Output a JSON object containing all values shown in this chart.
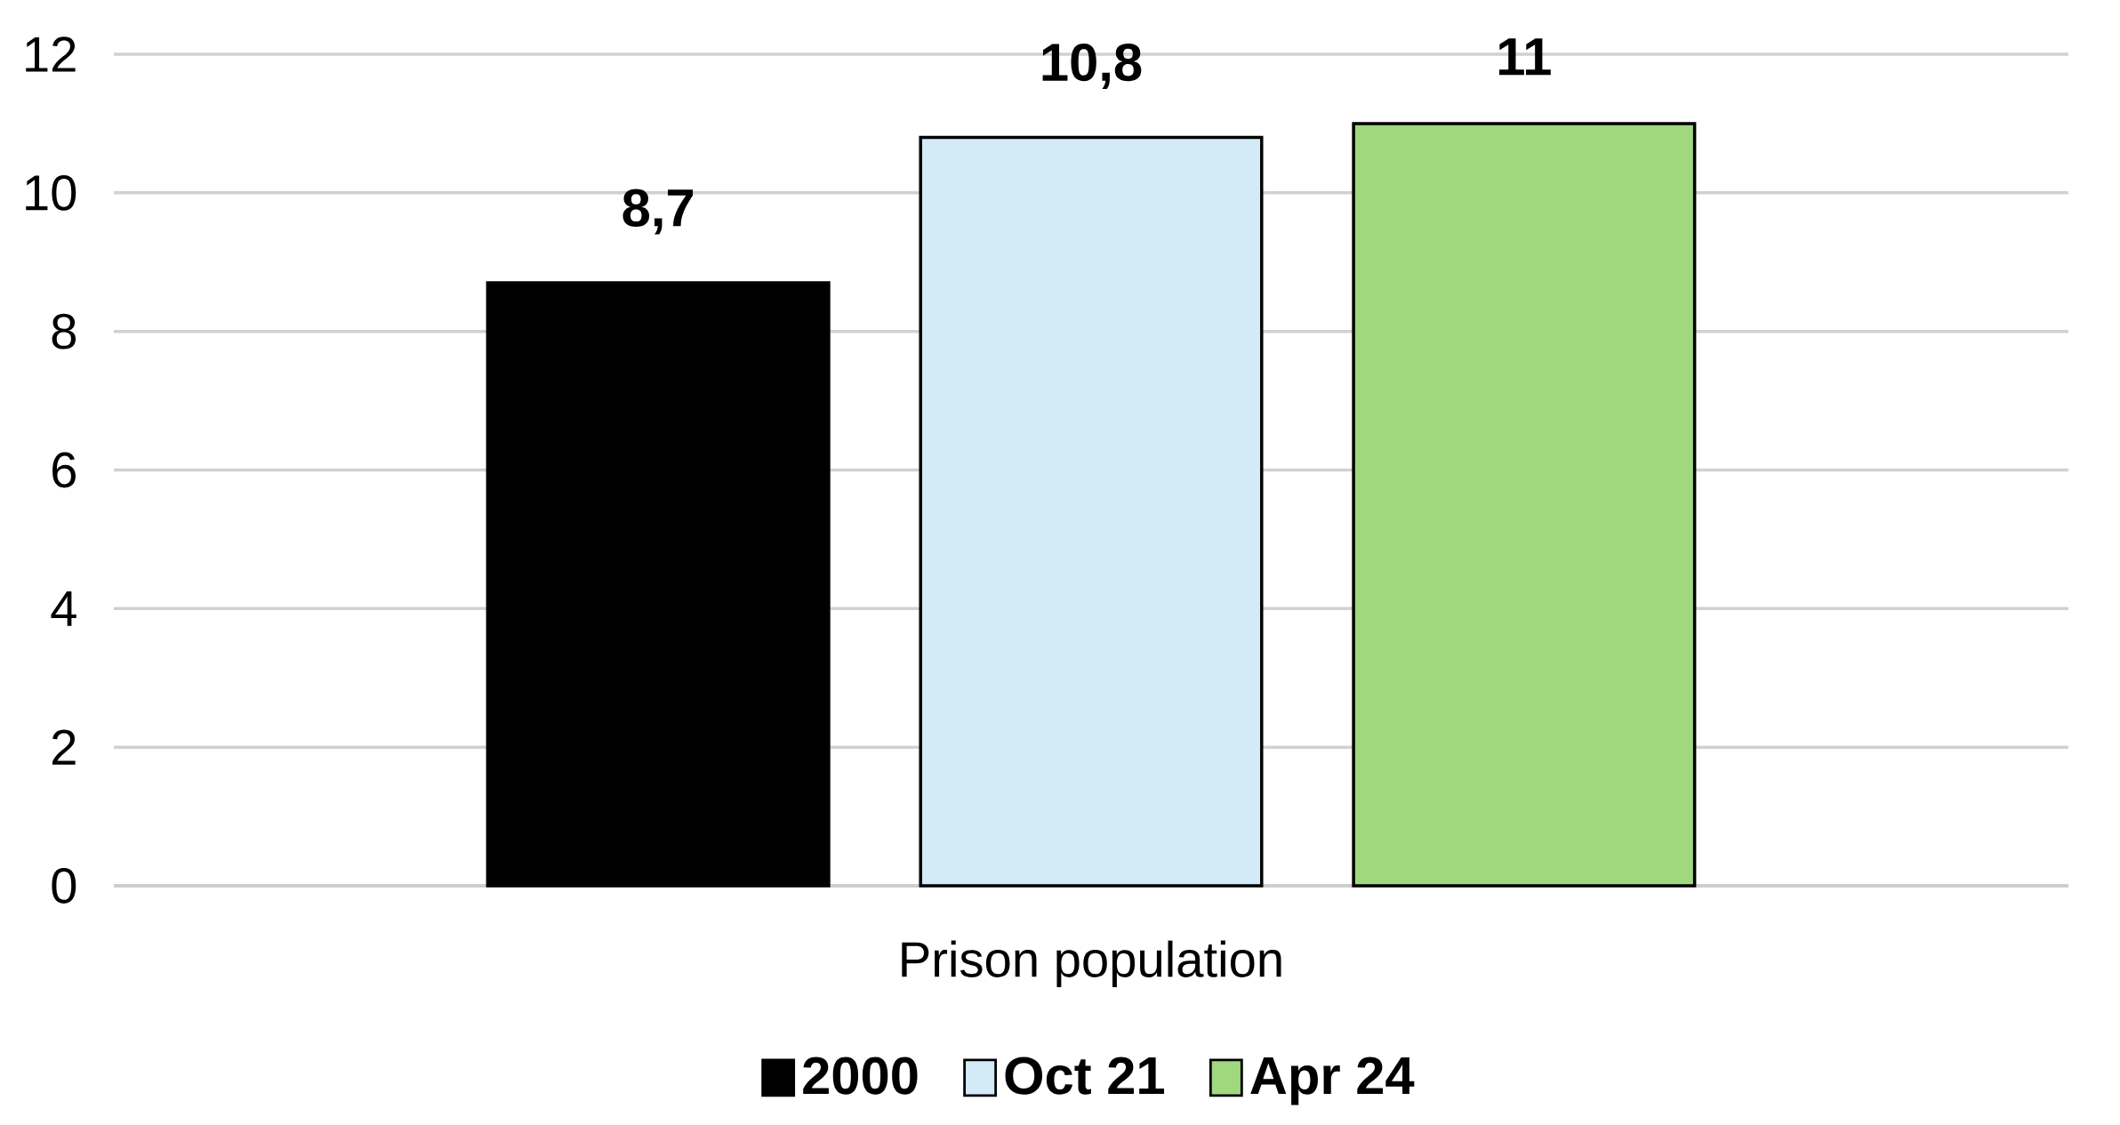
{
  "chart_data": {
    "type": "bar",
    "categories": [
      "Prison population"
    ],
    "series": [
      {
        "name": "2000",
        "color": "#000000",
        "values": [
          8.7
        ],
        "value_labels": [
          "8,7"
        ]
      },
      {
        "name": "Oct 21",
        "color": "#d3ebf7",
        "values": [
          10.8
        ],
        "value_labels": [
          "10,8"
        ]
      },
      {
        "name": "Apr 24",
        "color": "#a0d880",
        "values": [
          11
        ],
        "value_labels": [
          "11"
        ]
      }
    ],
    "ylim": [
      0,
      12
    ],
    "yticks": [
      0,
      2,
      4,
      6,
      8,
      10,
      12
    ],
    "grid": "y",
    "legend": "bottom"
  }
}
